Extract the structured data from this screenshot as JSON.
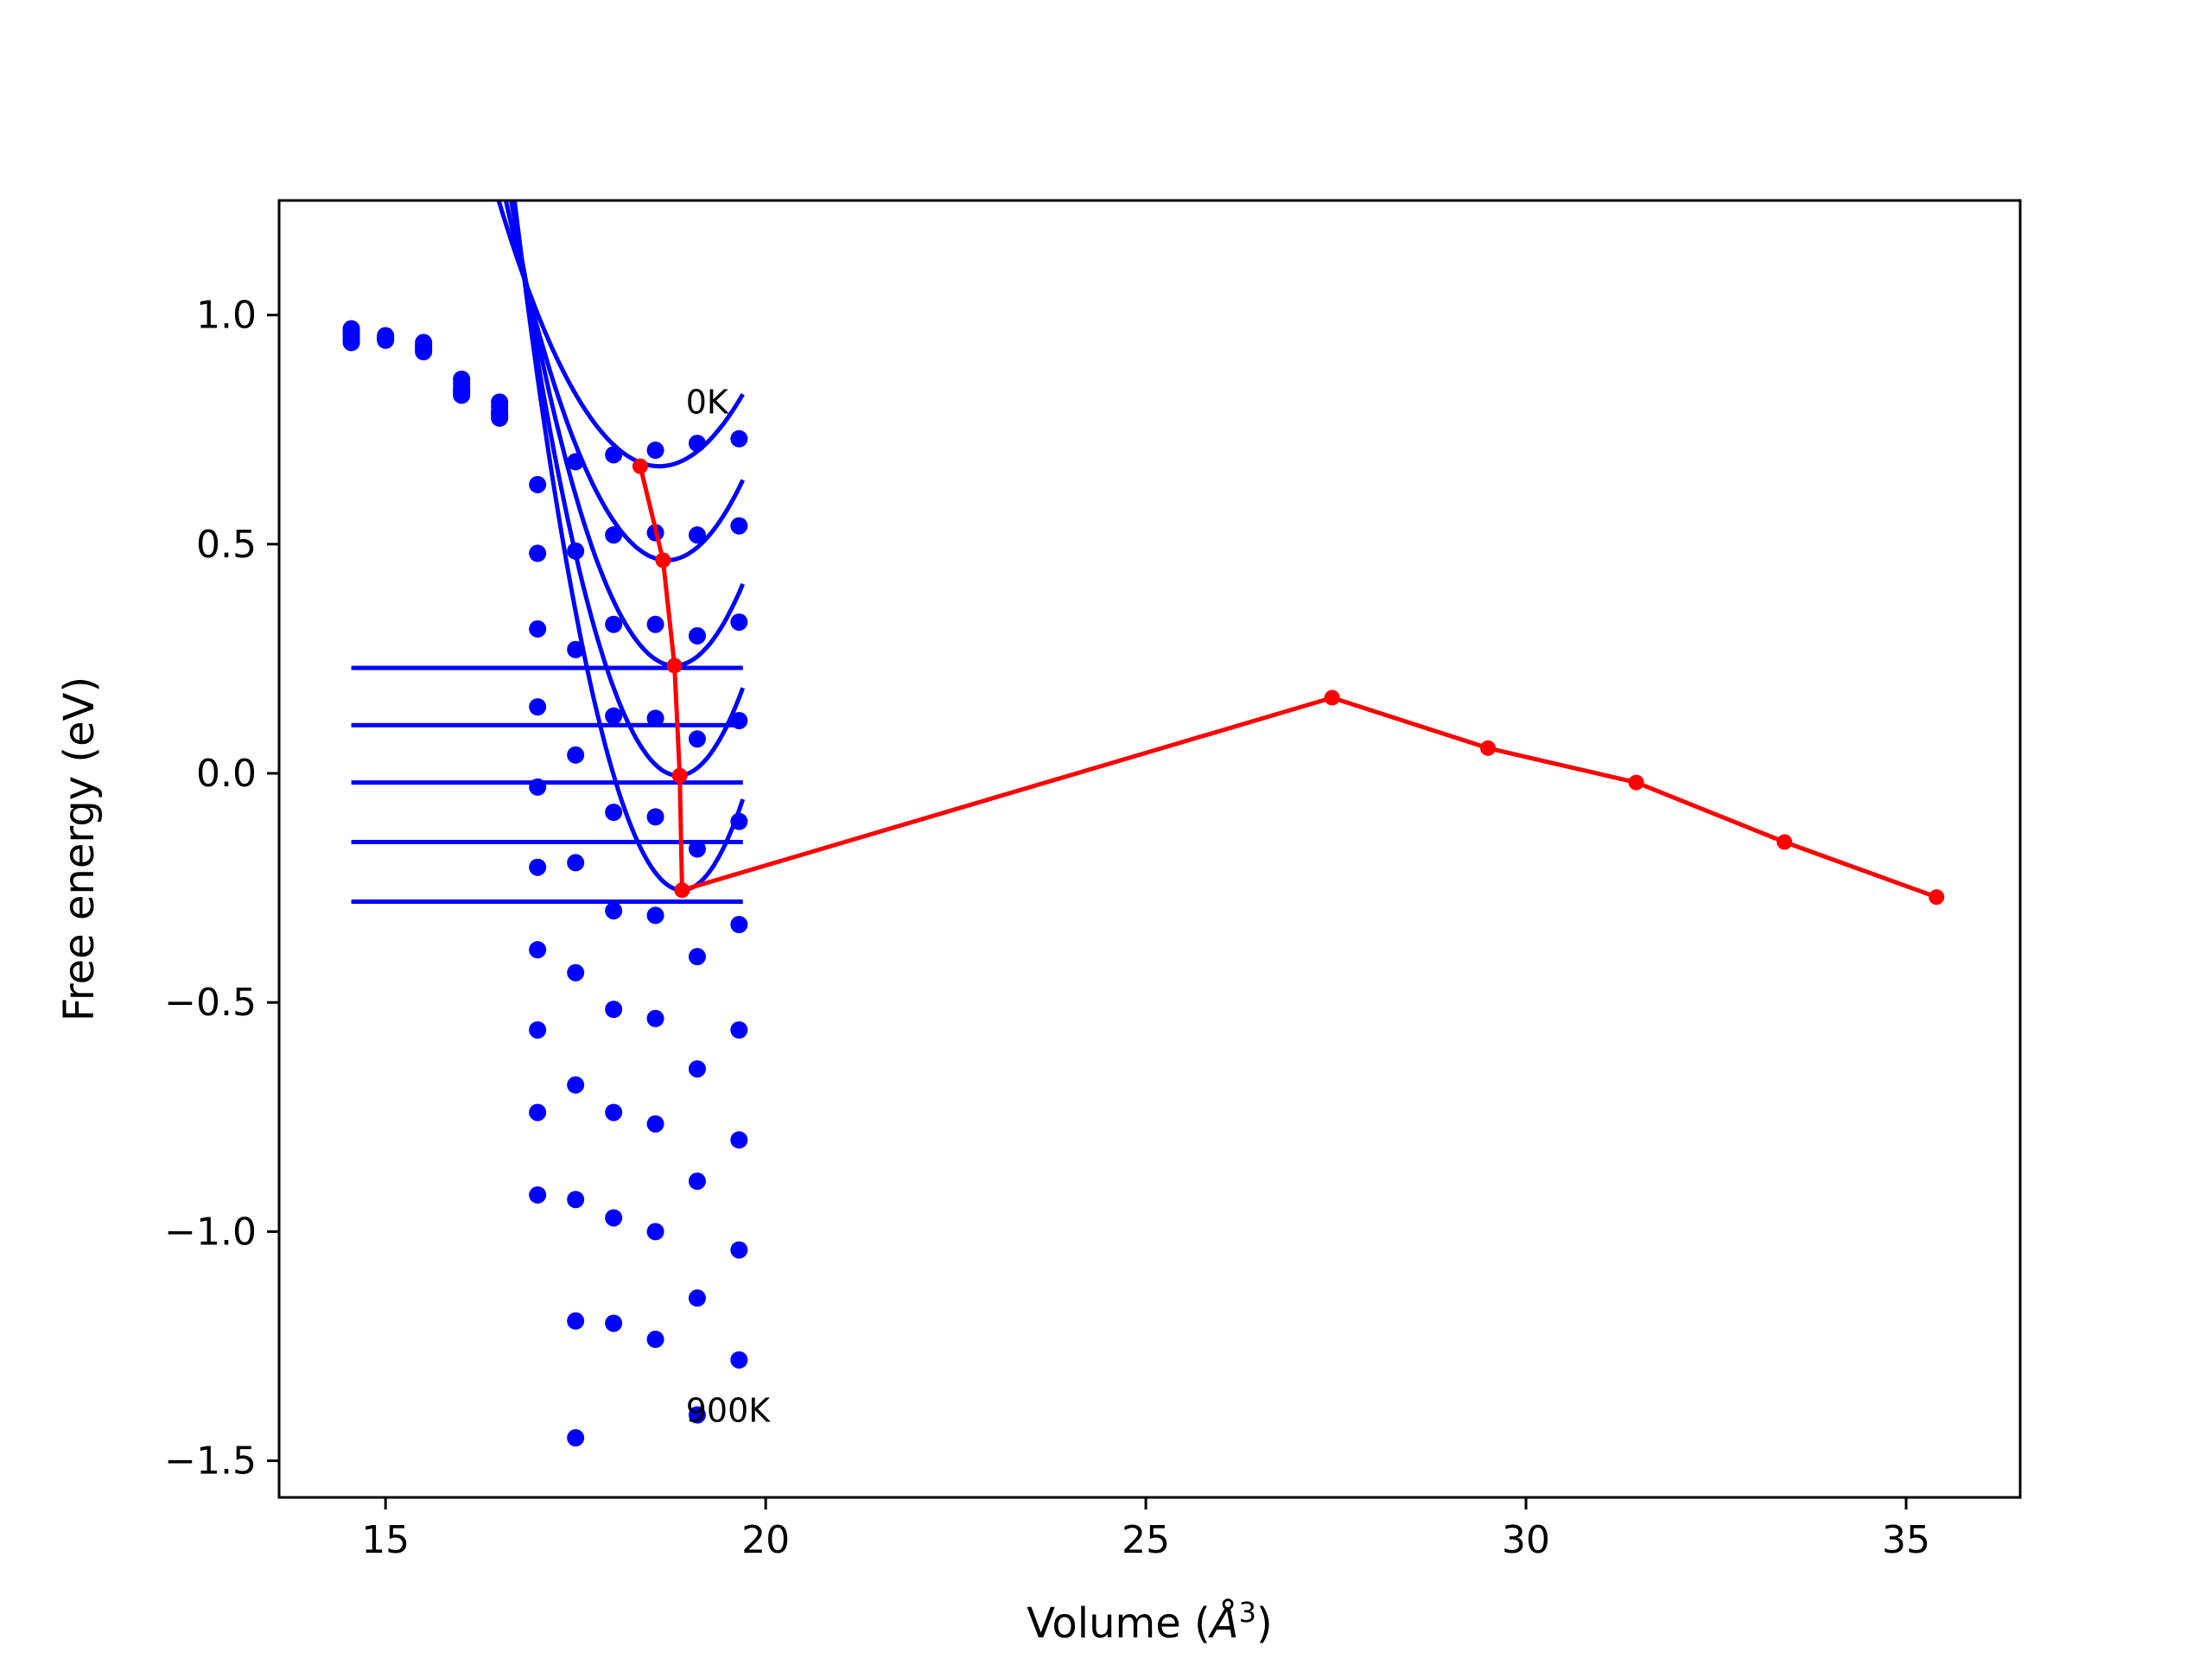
{
  "chart_data": {
    "type": "line",
    "xlabel": "Volume (",
    "xlabel_unit": "Å",
    "xlabel_exp": "3",
    "xlabel_close": ")",
    "ylabel": "Free energy (eV)",
    "xlim": [
      13.6,
      36.5
    ],
    "ylim": [
      -1.58,
      1.25
    ],
    "xticks": [
      15,
      20,
      25,
      30,
      35
    ],
    "xtick_labels": [
      "15",
      "20",
      "25",
      "30",
      "35"
    ],
    "yticks": [
      1.0,
      0.5,
      0.0,
      -0.5,
      -1.0,
      -1.5
    ],
    "ytick_labels": [
      "1.0",
      "0.5",
      "0.0",
      "−0.5",
      "−1.0",
      "−1.5"
    ],
    "grid": false,
    "annotations": [
      {
        "text": "0K",
        "x": 18.95,
        "y": 0.785
      },
      {
        "text": "900K",
        "x": 18.95,
        "y": -1.415
      }
    ],
    "colors": {
      "fits": "#0000ff",
      "points": "#0000ff",
      "path": "#ff0000"
    },
    "volumes": [
      14.55,
      15.0,
      15.5,
      16.0,
      16.5,
      17.0,
      17.5,
      18.0,
      18.55,
      19.1,
      19.65
    ],
    "scatter_series": [
      {
        "values": [
          0.97,
          0.955,
          0.94,
          0.86,
          0.81,
          null,
          0.68,
          0.695,
          0.705,
          0.72,
          0.73
        ]
      },
      {
        "values": [
          0.965,
          0.952,
          0.935,
          0.85,
          0.8,
          0.63,
          null,
          null,
          null,
          null,
          null
        ]
      },
      {
        "values": [
          0.96,
          0.948,
          0.93,
          0.84,
          0.79,
          null,
          0.485,
          0.52,
          0.525,
          0.52,
          0.54
        ]
      },
      {
        "values": [
          0.955,
          0.945,
          0.925,
          0.835,
          0.785,
          0.48,
          null,
          null,
          null,
          null,
          null
        ]
      },
      {
        "values": [
          0.95,
          null,
          0.92,
          0.83,
          0.78,
          0.315,
          0.27,
          0.325,
          0.325,
          0.3,
          0.33
        ]
      },
      {
        "values": [
          0.945,
          null,
          null,
          0.825,
          0.775,
          0.145,
          0.04,
          0.125,
          0.12,
          0.075,
          0.115
        ]
      },
      {
        "values": [
          0.94,
          null,
          null,
          null,
          null,
          -0.03,
          -0.195,
          -0.085,
          -0.095,
          -0.165,
          -0.105
        ]
      },
      {
        "values": [
          null,
          null,
          null,
          null,
          null,
          -0.205,
          null,
          -0.3,
          -0.31,
          -0.4,
          -0.33
        ]
      },
      {
        "values": [
          null,
          null,
          null,
          null,
          null,
          -0.385,
          -0.435,
          -0.515,
          -0.535,
          -0.645,
          -0.56
        ]
      },
      {
        "values": [
          null,
          null,
          null,
          null,
          null,
          -0.56,
          -0.68,
          -0.74,
          -0.765,
          -0.89,
          -0.8
        ]
      },
      {
        "values": [
          null,
          null,
          null,
          null,
          null,
          -0.74,
          -0.93,
          -0.97,
          -1.0,
          -1.145,
          -1.04
        ]
      },
      {
        "values": [
          null,
          null,
          null,
          null,
          null,
          -0.92,
          -1.195,
          -1.2,
          -1.235,
          -1.4,
          -1.28
        ]
      },
      {
        "values": [
          null,
          null,
          null,
          null,
          null,
          null,
          -1.45,
          null,
          null,
          null,
          null
        ]
      }
    ],
    "fit_curves": [
      {
        "a": 0.13,
        "v0": 18.6,
        "e0": 0.67,
        "x_start": 14.55,
        "x_end": 19.7
      },
      {
        "a": 0.175,
        "v0": 18.7,
        "e0": 0.465,
        "x_start": 14.55,
        "x_end": 19.7
      },
      {
        "a": 0.22,
        "v0": 18.8,
        "e0": 0.235,
        "x_start": 14.55,
        "x_end": 19.7
      },
      {
        "a": 0.265,
        "v0": 18.85,
        "e0": -0.005,
        "x_start": 14.55,
        "x_end": 19.7
      },
      {
        "a": 0.31,
        "v0": 18.9,
        "e0": -0.255,
        "x_start": 14.55,
        "x_end": 19.7
      }
    ],
    "hlines": [
      {
        "y": 0.23,
        "x_start": 14.55,
        "x_end": 19.7
      },
      {
        "y": 0.105,
        "x_start": 14.55,
        "x_end": 19.7
      },
      {
        "y": -0.02,
        "x_start": 14.55,
        "x_end": 19.7
      },
      {
        "y": -0.15,
        "x_start": 14.55,
        "x_end": 19.7
      },
      {
        "y": -0.28,
        "x_start": 14.55,
        "x_end": 19.7
      }
    ],
    "path": {
      "x": [
        18.35,
        18.65,
        18.8,
        18.87,
        18.9,
        27.45,
        29.5,
        31.45,
        33.4,
        35.4
      ],
      "y": [
        0.67,
        0.465,
        0.235,
        -0.005,
        -0.255,
        0.165,
        0.055,
        -0.02,
        -0.15,
        -0.27
      ]
    }
  }
}
